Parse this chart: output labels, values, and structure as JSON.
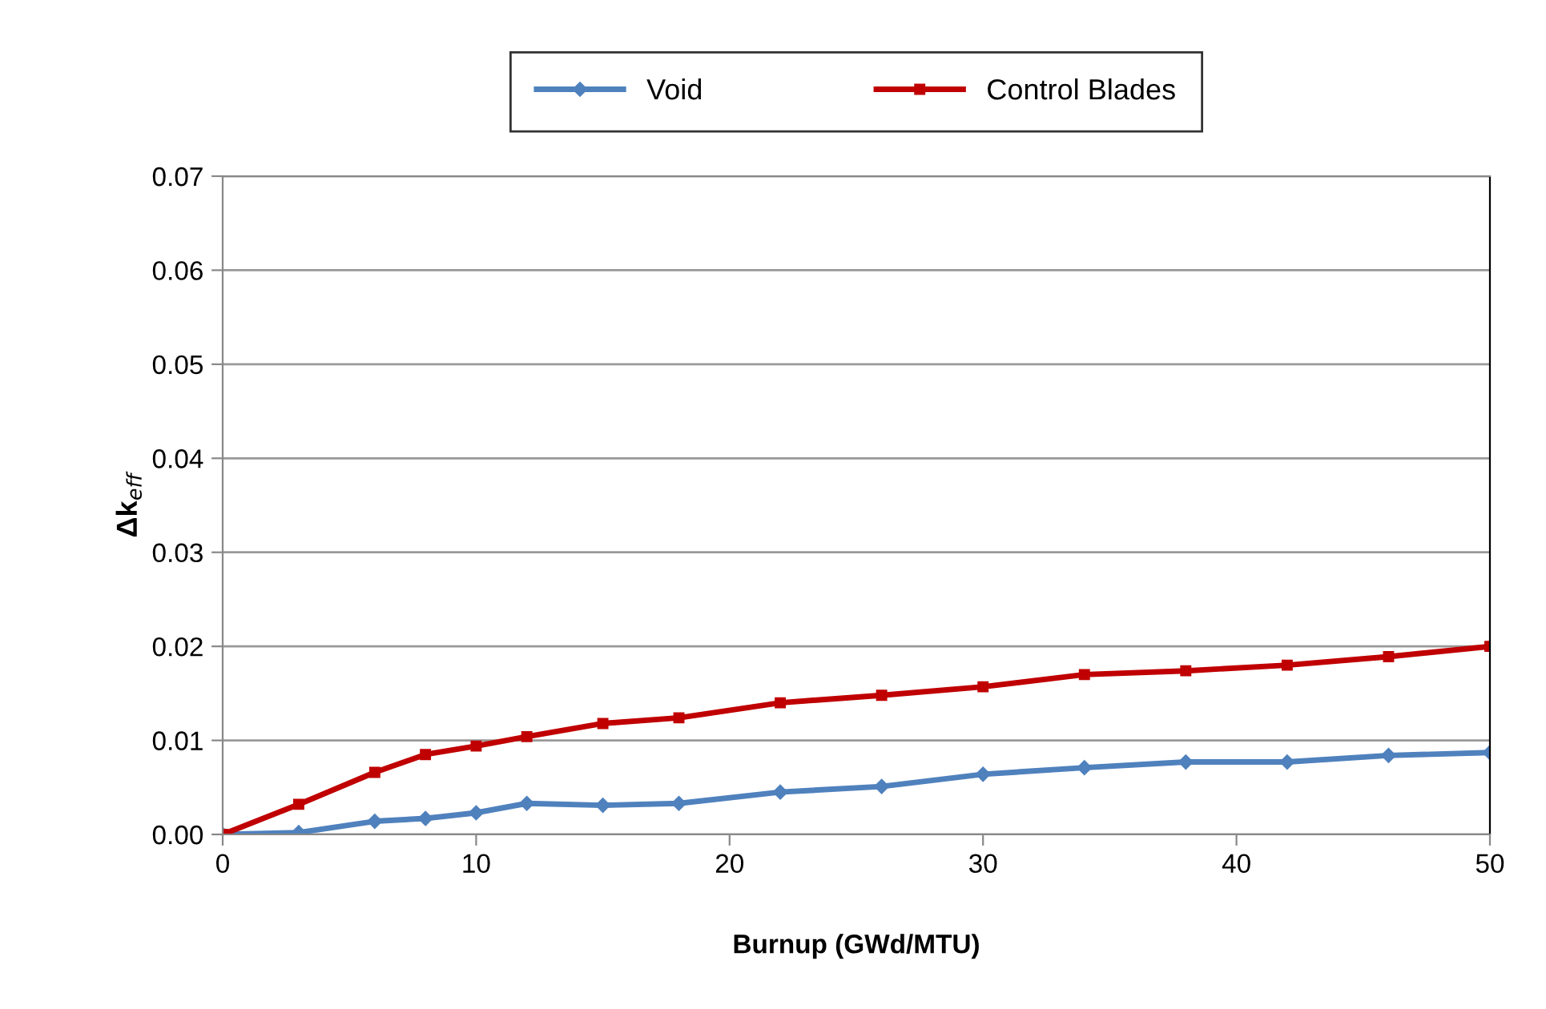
{
  "chart_data": {
    "type": "line",
    "xlabel": "Burnup (GWd/MTU)",
    "ylabel": "Δk$_{eff}$",
    "x": [
      0,
      3,
      6,
      8,
      10,
      12,
      15,
      18,
      22,
      26,
      30,
      34,
      38,
      42,
      46,
      50
    ],
    "series": [
      {
        "name": "Void",
        "color": "#4f81bd",
        "marker": "diamond",
        "values": [
          0,
          0.0002,
          0.0014,
          0.0017,
          0.0023,
          0.0033,
          0.0031,
          0.0033,
          0.0045,
          0.0051,
          0.0064,
          0.0071,
          0.0077,
          0.0077,
          0.0084,
          0.0087
        ]
      },
      {
        "name": "Control Blades",
        "color": "#c00000",
        "marker": "square",
        "values": [
          0,
          0.0032,
          0.0066,
          0.0085,
          0.0094,
          0.0104,
          0.0118,
          0.0124,
          0.014,
          0.0148,
          0.0157,
          0.017,
          0.0174,
          0.018,
          0.0189,
          0.02
        ]
      }
    ],
    "xlim": [
      0,
      50
    ],
    "xticks": [
      0,
      10,
      20,
      30,
      40,
      50
    ],
    "ylim": [
      0,
      0.07
    ],
    "yticks": [
      {
        "value": 0,
        "label": "0.00"
      },
      {
        "value": 0.01,
        "label": "0.01"
      },
      {
        "value": 0.02,
        "label": "0.02"
      },
      {
        "value": 0.03,
        "label": "0.03"
      },
      {
        "value": 0.04,
        "label": "0.04"
      },
      {
        "value": 0.05,
        "label": "0.05"
      },
      {
        "value": 0.06,
        "label": "0.06"
      },
      {
        "value": 0.07,
        "label": "0.07"
      }
    ],
    "grid": "y",
    "legend": "top",
    "line_style": "solid"
  }
}
